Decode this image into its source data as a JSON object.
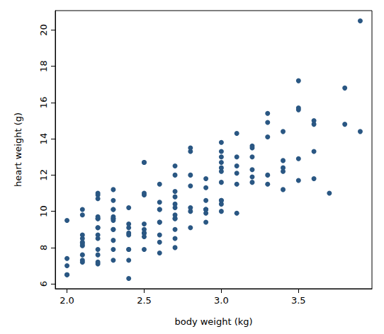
{
  "chart_data": {
    "type": "scatter",
    "x_label": "body weight (kg)",
    "y_label": "heart weight (g)",
    "color": "#2a5783",
    "marker": "circle",
    "grid": false,
    "xlim": [
      1.924,
      3.976
    ],
    "xticks": [
      {
        "value": 2.0,
        "label": "2.0"
      },
      {
        "value": 2.5,
        "label": "2.5"
      },
      {
        "value": 3.0,
        "label": "3.0"
      },
      {
        "value": 3.5,
        "label": "3.5"
      }
    ],
    "ylim": [
      5.732,
      21.068
    ],
    "yticks": [
      6,
      8,
      10,
      12,
      14,
      16,
      18,
      20
    ],
    "x": [
      2.0,
      2.0,
      2.0,
      2.0,
      2.0,
      2.1,
      2.1,
      2.1,
      2.1,
      2.1,
      2.1,
      2.1,
      2.1,
      2.1,
      2.1,
      2.2,
      2.2,
      2.2,
      2.2,
      2.2,
      2.2,
      2.2,
      2.2,
      2.2,
      2.2,
      2.2,
      2.2,
      2.2,
      2.2,
      2.3,
      2.3,
      2.3,
      2.3,
      2.3,
      2.3,
      2.3,
      2.3,
      2.3,
      2.3,
      2.3,
      2.3,
      2.3,
      2.4,
      2.4,
      2.4,
      2.4,
      2.4,
      2.4,
      2.4,
      2.4,
      2.4,
      2.5,
      2.5,
      2.5,
      2.5,
      2.5,
      2.5,
      2.5,
      2.5,
      2.5,
      2.5,
      2.6,
      2.6,
      2.6,
      2.6,
      2.6,
      2.6,
      2.6,
      2.6,
      2.6,
      2.7,
      2.7,
      2.7,
      2.7,
      2.7,
      2.7,
      2.7,
      2.7,
      2.7,
      2.7,
      2.7,
      2.7,
      2.8,
      2.8,
      2.8,
      2.8,
      2.8,
      2.8,
      2.8,
      2.9,
      2.9,
      2.9,
      2.9,
      2.9,
      2.9,
      2.9,
      2.9,
      3.0,
      3.0,
      3.0,
      3.0,
      3.0,
      3.0,
      3.0,
      3.0,
      3.0,
      3.0,
      3.0,
      3.1,
      3.1,
      3.1,
      3.1,
      3.1,
      3.1,
      3.2,
      3.2,
      3.2,
      3.2,
      3.2,
      3.2,
      3.3,
      3.3,
      3.3,
      3.3,
      3.3,
      3.4,
      3.4,
      3.4,
      3.4,
      3.4,
      3.5,
      3.5,
      3.5,
      3.5,
      3.5,
      3.6,
      3.6,
      3.6,
      3.6,
      3.7,
      3.8,
      3.8,
      3.9,
      3.9
    ],
    "values": [
      7.0,
      7.4,
      9.5,
      6.5,
      6.5,
      7.2,
      7.3,
      7.6,
      8.1,
      8.2,
      8.3,
      8.5,
      8.7,
      9.8,
      10.1,
      7.1,
      8.7,
      9.1,
      9.7,
      10.9,
      11.0,
      7.2,
      7.6,
      7.9,
      8.5,
      9.1,
      9.6,
      9.6,
      10.7,
      7.3,
      7.9,
      8.4,
      9.0,
      9.0,
      9.5,
      9.6,
      9.7,
      10.1,
      10.1,
      10.6,
      11.2,
      9.6,
      6.3,
      8.7,
      8.8,
      10.2,
      7.3,
      7.9,
      7.9,
      9.1,
      9.3,
      9.0,
      10.9,
      7.9,
      8.6,
      8.8,
      8.8,
      9.3,
      11.0,
      12.7,
      12.7,
      8.7,
      10.1,
      10.1,
      7.7,
      8.3,
      9.4,
      9.4,
      10.5,
      11.5,
      8.5,
      10.2,
      10.8,
      8.0,
      9.0,
      9.6,
      9.6,
      9.8,
      10.4,
      11.1,
      12.0,
      12.5,
      9.1,
      10.0,
      10.2,
      11.4,
      12.0,
      13.3,
      13.5,
      9.9,
      10.1,
      10.1,
      9.4,
      10.1,
      10.6,
      11.3,
      11.8,
      10.6,
      13.0,
      10.0,
      10.4,
      10.6,
      11.6,
      12.2,
      12.4,
      12.7,
      13.3,
      13.8,
      9.9,
      11.5,
      12.1,
      12.5,
      13.0,
      14.3,
      11.6,
      11.9,
      12.3,
      13.0,
      13.5,
      13.6,
      11.5,
      12.0,
      14.1,
      14.9,
      15.4,
      11.2,
      12.2,
      12.4,
      12.8,
      14.4,
      11.7,
      12.9,
      15.6,
      15.7,
      17.2,
      11.8,
      13.3,
      14.8,
      15.0,
      11.0,
      14.8,
      16.8,
      14.4,
      20.5
    ]
  }
}
